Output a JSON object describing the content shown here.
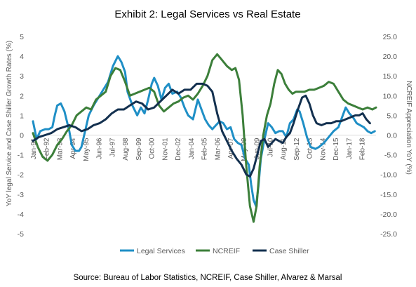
{
  "chart_data": {
    "type": "line",
    "title": "Exhibit 2: Legal Services vs Real Estate",
    "ylabel": "YoY legal Service and Case Shiller Growth Rates (%)",
    "y2label": "NCREIF Appreciation YoY (%)",
    "ylim": [
      -5,
      5
    ],
    "y2lim": [
      -25,
      25
    ],
    "yticks": [
      "5",
      "4",
      "3",
      "2",
      "1",
      "0",
      "-1",
      "-2",
      "-3",
      "-4",
      "-5"
    ],
    "y2ticks": [
      "25.0",
      "20.0",
      "15.0",
      "10.0",
      "5.0",
      "0.0",
      "-5.0",
      "-10.0",
      "-15.0",
      "-20.0",
      "-25.0"
    ],
    "x_labels": [
      "Jan-91",
      "Feb-92",
      "Mar-93",
      "Apr-94",
      "May-95",
      "Jun-96",
      "Jul-97",
      "Aug-98",
      "Sep-99",
      "Oct-00",
      "Nov-01",
      "Dec-02",
      "Jan-04",
      "Feb-05",
      "Mar-06",
      "Apr-07",
      "May-08",
      "Jun-09",
      "Jul-10",
      "Aug-11",
      "Sep-12",
      "Oct-13",
      "Nov-14",
      "Dec-15",
      "Jan-17",
      "Feb-18"
    ],
    "x_range": [
      1991.0,
      2019.3
    ],
    "grid": false,
    "legend_position": "bottom",
    "colors": {
      "legal": "#1f8fc6",
      "ncreif": "#3c7f3a",
      "case_shiller": "#13304f",
      "axis": "#d9d9d9"
    },
    "series": [
      {
        "name": "Legal Services",
        "axis": "left",
        "color": "#1f8fc6",
        "x": [
          1991.0,
          1991.3,
          1991.6,
          1992.0,
          1992.3,
          1992.6,
          1992.8,
          1993.0,
          1993.3,
          1993.6,
          1994.0,
          1994.2,
          1994.5,
          1994.8,
          1995.0,
          1995.3,
          1995.6,
          1996.0,
          1996.4,
          1996.8,
          1997.2,
          1997.6,
          1998.0,
          1998.3,
          1998.6,
          1998.8,
          1999.2,
          1999.6,
          1999.9,
          2000.2,
          2000.5,
          2000.8,
          2001.0,
          2001.3,
          2001.6,
          2001.9,
          2002.2,
          2002.5,
          2002.9,
          2003.2,
          2003.5,
          2003.8,
          2004.2,
          2004.6,
          2004.9,
          2005.2,
          2005.5,
          2005.8,
          2006.1,
          2006.4,
          2006.7,
          2007.0,
          2007.3,
          2007.6,
          2007.9,
          2008.2,
          2008.5,
          2008.8,
          2009.0,
          2009.2,
          2009.4,
          2009.6,
          2009.8,
          2010.1,
          2010.4,
          2010.7,
          2011.0,
          2011.3,
          2011.6,
          2011.9,
          2012.2,
          2012.5,
          2012.8,
          2013.0,
          2013.3,
          2013.6,
          2013.9,
          2014.3,
          2014.6,
          2015.0,
          2015.4,
          2015.8,
          2016.2,
          2016.5,
          2016.8,
          2017.1,
          2017.4,
          2017.7,
          2018.0,
          2018.3,
          2018.6,
          2018.9,
          2019.2
        ],
        "values": [
          0.7,
          -0.2,
          0.2,
          0.3,
          0.3,
          0.4,
          1.0,
          1.5,
          1.6,
          1.2,
          0.2,
          -0.5,
          -0.8,
          -0.8,
          -0.6,
          0.2,
          1.0,
          1.5,
          1.9,
          2.3,
          2.7,
          3.5,
          4.0,
          3.7,
          3.2,
          2.2,
          1.5,
          1.0,
          1.4,
          1.1,
          1.8,
          2.6,
          2.9,
          2.5,
          1.8,
          2.4,
          2.6,
          2.1,
          2.2,
          1.9,
          1.4,
          1.0,
          0.8,
          1.8,
          1.3,
          0.8,
          0.5,
          0.3,
          0.5,
          0.7,
          0.6,
          0.3,
          0.4,
          -0.2,
          -0.4,
          -0.5,
          -1.2,
          -1.5,
          -2.5,
          -3.3,
          -3.6,
          -2.6,
          -1.2,
          -0.2,
          0.6,
          0.4,
          0.1,
          0.2,
          0.2,
          -0.1,
          0.6,
          0.8,
          1.3,
          1.2,
          0.6,
          -0.1,
          -0.6,
          -0.7,
          -0.6,
          -0.4,
          -0.1,
          0.2,
          0.4,
          0.9,
          1.4,
          1.1,
          0.9,
          0.6,
          0.5,
          0.4,
          0.2,
          0.1,
          0.2
        ]
      },
      {
        "name": "NCREIF",
        "axis": "right",
        "color": "#3c7f3a",
        "x": [
          1991.0,
          1991.4,
          1991.8,
          1992.2,
          1992.6,
          1993.0,
          1993.4,
          1993.8,
          1994.2,
          1994.6,
          1995.0,
          1995.4,
          1995.8,
          1996.2,
          1996.6,
          1997.0,
          1997.4,
          1997.8,
          1998.2,
          1998.6,
          1999.0,
          1999.4,
          1999.8,
          2000.2,
          2000.6,
          2001.0,
          2001.4,
          2001.8,
          2002.2,
          2002.6,
          2003.0,
          2003.4,
          2003.8,
          2004.2,
          2004.6,
          2005.0,
          2005.4,
          2005.8,
          2006.2,
          2006.6,
          2007.0,
          2007.4,
          2007.7,
          2008.0,
          2008.3,
          2008.6,
          2008.9,
          2009.2,
          2009.45,
          2009.7,
          2010.0,
          2010.3,
          2010.6,
          2010.9,
          2011.2,
          2011.5,
          2011.8,
          2012.1,
          2012.4,
          2012.7,
          2013.0,
          2013.4,
          2013.8,
          2014.2,
          2014.6,
          2015.0,
          2015.4,
          2015.8,
          2016.2,
          2016.6,
          2017.0,
          2017.4,
          2017.8,
          2018.2,
          2018.6,
          2019.0,
          2019.3
        ],
        "values": [
          0.5,
          -3.0,
          -5.5,
          -6.5,
          -5.0,
          -2.5,
          -1.0,
          1.0,
          2.5,
          5.0,
          6.0,
          7.0,
          6.5,
          9.0,
          10.0,
          11.0,
          15.0,
          17.0,
          16.5,
          13.5,
          10.0,
          10.5,
          11.0,
          11.5,
          12.0,
          11.0,
          7.5,
          6.0,
          7.0,
          8.0,
          8.5,
          9.5,
          10.0,
          9.0,
          10.5,
          12.5,
          15.0,
          19.0,
          20.5,
          19.0,
          17.5,
          16.5,
          17.0,
          14.0,
          5.0,
          -8.0,
          -18.0,
          -22.0,
          -18.0,
          -8.0,
          0.0,
          5.0,
          8.0,
          13.0,
          16.5,
          15.5,
          13.0,
          11.5,
          10.5,
          11.0,
          11.0,
          11.0,
          11.5,
          11.5,
          12.0,
          12.5,
          13.5,
          13.0,
          11.0,
          9.0,
          8.0,
          7.5,
          7.0,
          6.5,
          7.0,
          6.5,
          7.0
        ]
      },
      {
        "name": "Case Shiller",
        "axis": "left",
        "color": "#13304f",
        "x": [
          1991.0,
          1991.5,
          1992.0,
          1992.5,
          1993.0,
          1993.5,
          1994.0,
          1994.5,
          1995.0,
          1995.5,
          1996.0,
          1996.5,
          1997.0,
          1997.5,
          1998.0,
          1998.5,
          1999.0,
          1999.5,
          2000.0,
          2000.5,
          2001.0,
          2001.5,
          2002.0,
          2002.5,
          2003.0,
          2003.5,
          2004.0,
          2004.5,
          2005.0,
          2005.4,
          2005.8,
          2006.2,
          2006.6,
          2007.0,
          2007.4,
          2007.8,
          2008.2,
          2008.6,
          2008.9,
          2009.2,
          2009.5,
          2009.8,
          2010.1,
          2010.4,
          2010.7,
          2011.0,
          2011.3,
          2011.6,
          2011.9,
          2012.2,
          2012.5,
          2012.8,
          2013.2,
          2013.5,
          2013.8,
          2014.1,
          2014.4,
          2014.8,
          2015.2,
          2015.6,
          2016.0,
          2016.4,
          2016.8,
          2017.2,
          2017.6,
          2017.9,
          2018.2,
          2018.5,
          2018.8
        ],
        "values": [
          -0.3,
          -0.1,
          0.0,
          0.1,
          0.3,
          0.4,
          0.5,
          0.4,
          0.2,
          0.3,
          0.5,
          0.6,
          0.8,
          1.1,
          1.3,
          1.3,
          1.5,
          1.7,
          1.6,
          1.3,
          1.4,
          1.7,
          2.0,
          2.3,
          2.1,
          2.3,
          2.3,
          2.6,
          2.6,
          2.5,
          2.2,
          1.1,
          0.2,
          -0.3,
          -0.8,
          -1.2,
          -1.5,
          -2.0,
          -2.1,
          -1.7,
          -1.0,
          -0.3,
          -0.2,
          -0.6,
          -0.4,
          -0.2,
          -0.3,
          -0.4,
          -0.1,
          0.1,
          0.6,
          1.2,
          1.9,
          2.0,
          1.6,
          1.0,
          0.6,
          0.5,
          0.6,
          0.6,
          0.7,
          0.7,
          0.8,
          0.9,
          1.0,
          1.0,
          1.1,
          0.8,
          0.6
        ]
      }
    ],
    "source": "Source: Bureau of Labor Statistics, NCREIF, Case Shiller, Alvarez & Marsal"
  }
}
